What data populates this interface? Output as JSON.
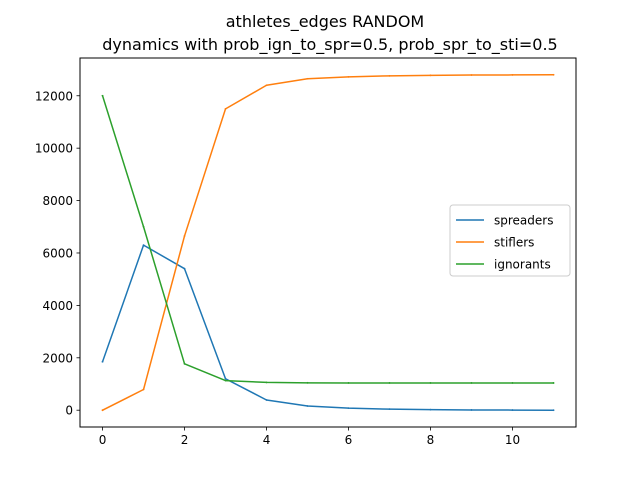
{
  "chart_data": {
    "type": "line",
    "title": "athletes_edges RANDOM",
    "subtitle": "dynamics with prob_ign_to_spr=0.5, prob_spr_to_sti=0.5",
    "xlabel": "",
    "ylabel": "",
    "xlim": [
      -0.55,
      11.55
    ],
    "ylim": [
      -641,
      13441
    ],
    "x_ticks": [
      0,
      2,
      4,
      6,
      8,
      10
    ],
    "y_ticks": [
      0,
      2000,
      4000,
      6000,
      8000,
      10000,
      12000
    ],
    "grid": false,
    "legend_position": "center-right",
    "x": [
      0,
      1,
      2,
      3,
      4,
      5,
      6,
      7,
      8,
      9,
      10,
      11
    ],
    "series": [
      {
        "name": "spreaders",
        "color": "#1f77b4",
        "values": [
          1850,
          6300,
          5400,
          1200,
          390,
          160,
          80,
          40,
          20,
          10,
          5,
          0
        ]
      },
      {
        "name": "stiflers",
        "color": "#ff7f0e",
        "values": [
          0,
          790,
          6650,
          11500,
          12400,
          12650,
          12720,
          12760,
          12780,
          12790,
          12795,
          12800
        ]
      },
      {
        "name": "ignorants",
        "color": "#2ca02c",
        "values": [
          12000,
          7000,
          1770,
          1130,
          1060,
          1045,
          1040,
          1040,
          1040,
          1040,
          1040,
          1040
        ]
      }
    ]
  }
}
